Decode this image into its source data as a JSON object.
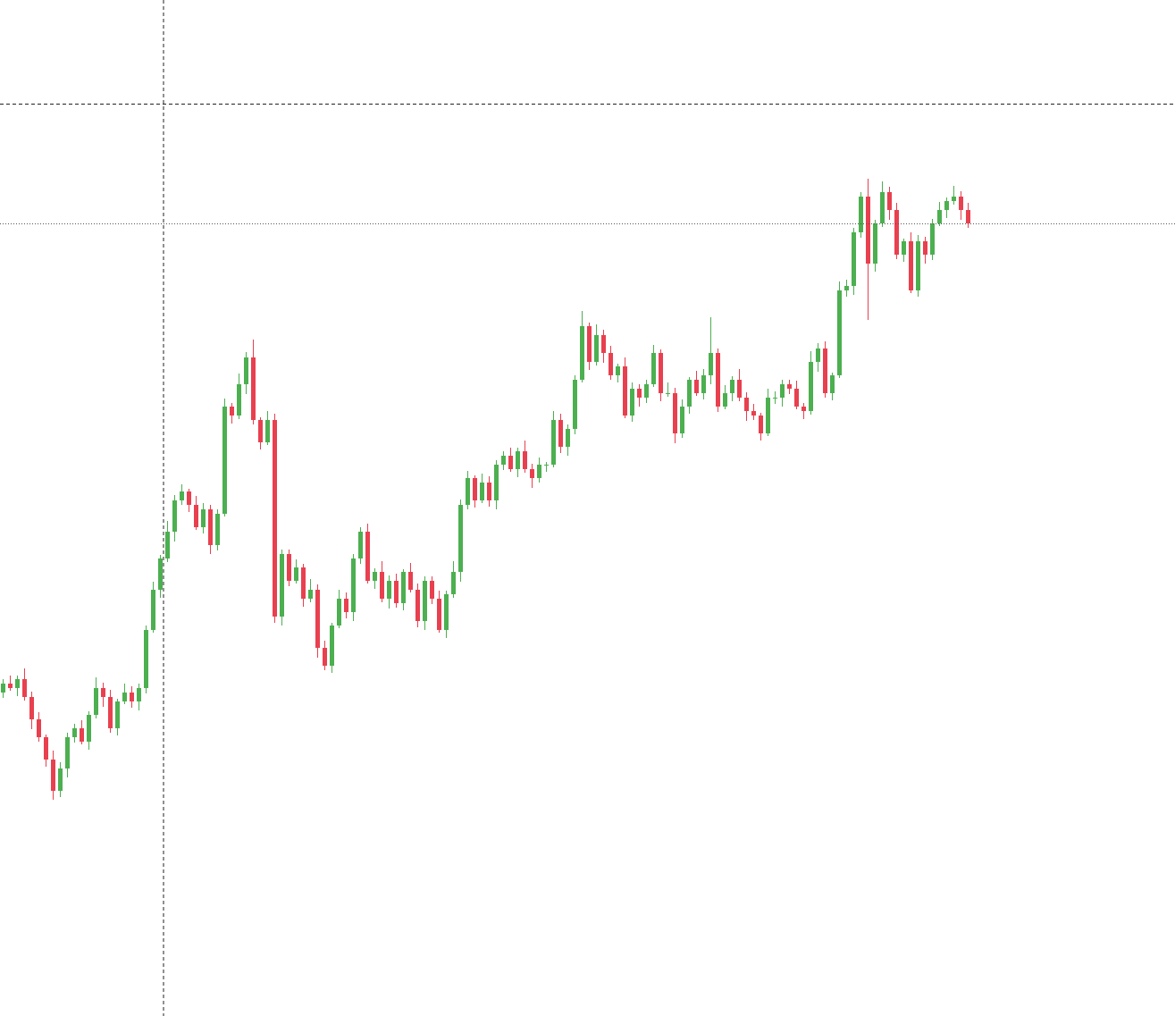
{
  "chart_data": {
    "type": "candlestick",
    "up_color": "#4caf50",
    "down_color": "#e8404f",
    "ylim": [
      0,
      1137
    ],
    "price_line": true,
    "open": [
      362,
      372,
      367,
      377,
      357,
      332,
      312,
      287,
      252,
      277,
      312,
      322,
      307,
      337,
      367,
      357,
      322,
      352,
      362,
      352,
      367,
      432,
      477,
      512,
      542,
      577,
      587,
      572,
      547,
      567,
      527,
      562,
      682,
      672,
      707,
      737,
      667,
      642,
      667,
      447,
      517,
      487,
      502,
      467,
      477,
      412,
      392,
      437,
      467,
      452,
      512,
      542,
      487,
      497,
      467,
      487,
      462,
      497,
      477,
      442,
      487,
      467,
      432,
      472,
      497,
      572,
      602,
      577,
      597,
      577,
      617,
      627,
      612,
      632,
      612,
      602,
      617,
      617,
      667,
      637,
      657,
      712,
      772,
      732,
      762,
      742,
      717,
      727,
      672,
      702,
      692,
      707,
      742,
      697,
      697,
      652,
      682,
      712,
      697,
      717,
      742,
      682,
      697,
      712,
      692,
      677,
      672,
      652,
      692,
      692,
      707,
      702,
      682,
      677,
      732,
      747,
      697,
      717,
      812,
      817,
      877,
      917,
      842,
      887,
      922,
      902,
      852,
      867,
      812,
      867,
      852,
      887,
      902,
      912,
      917,
      902
    ],
    "close": [
      372,
      367,
      377,
      357,
      332,
      312,
      287,
      252,
      277,
      312,
      322,
      307,
      337,
      367,
      357,
      322,
      352,
      362,
      352,
      367,
      432,
      477,
      512,
      542,
      577,
      587,
      572,
      547,
      567,
      527,
      562,
      682,
      672,
      707,
      737,
      667,
      642,
      667,
      447,
      517,
      487,
      502,
      467,
      477,
      412,
      392,
      437,
      467,
      452,
      512,
      542,
      487,
      497,
      467,
      487,
      462,
      497,
      477,
      442,
      487,
      467,
      432,
      472,
      497,
      572,
      602,
      577,
      597,
      577,
      617,
      627,
      612,
      632,
      612,
      602,
      617,
      617,
      667,
      637,
      657,
      712,
      772,
      732,
      762,
      742,
      717,
      727,
      672,
      702,
      692,
      707,
      742,
      697,
      697,
      652,
      682,
      712,
      697,
      717,
      742,
      682,
      697,
      712,
      692,
      677,
      672,
      652,
      692,
      692,
      707,
      702,
      682,
      677,
      732,
      747,
      697,
      717,
      812,
      817,
      877,
      917,
      842,
      887,
      922,
      902,
      852,
      867,
      812,
      867,
      852,
      887,
      902,
      912,
      917,
      902,
      887
    ],
    "high": [
      377,
      381,
      381,
      389,
      363,
      340,
      315,
      297,
      284,
      317,
      327,
      331,
      341,
      379,
      373,
      365,
      355,
      372,
      369,
      372,
      437,
      486,
      516,
      554,
      583,
      595,
      590,
      582,
      574,
      572,
      567,
      691,
      686,
      719,
      743,
      757,
      670,
      677,
      674,
      522,
      522,
      511,
      506,
      489,
      483,
      420,
      440,
      477,
      474,
      517,
      547,
      551,
      501,
      509,
      493,
      495,
      500,
      507,
      484,
      492,
      492,
      476,
      476,
      509,
      578,
      610,
      605,
      607,
      604,
      622,
      632,
      636,
      636,
      644,
      618,
      625,
      620,
      677,
      674,
      662,
      717,
      789,
      776,
      774,
      768,
      750,
      730,
      737,
      709,
      707,
      712,
      751,
      746,
      709,
      703,
      690,
      715,
      722,
      724,
      782,
      747,
      706,
      716,
      724,
      698,
      685,
      675,
      702,
      699,
      712,
      712,
      711,
      686,
      744,
      753,
      755,
      720,
      822,
      824,
      882,
      922,
      937,
      891,
      934,
      928,
      910,
      870,
      877,
      874,
      872,
      892,
      911,
      916,
      929,
      923,
      910
    ],
    "low": [
      356,
      364,
      358,
      353,
      321,
      307,
      279,
      242,
      245,
      267,
      306,
      304,
      298,
      333,
      346,
      317,
      314,
      349,
      345,
      342,
      361,
      429,
      468,
      508,
      531,
      572,
      564,
      544,
      540,
      517,
      521,
      559,
      663,
      668,
      696,
      662,
      634,
      639,
      440,
      437,
      481,
      484,
      458,
      463,
      401,
      387,
      384,
      434,
      445,
      442,
      506,
      484,
      478,
      463,
      456,
      457,
      454,
      474,
      435,
      432,
      461,
      429,
      423,
      468,
      486,
      567,
      569,
      574,
      570,
      567,
      611,
      609,
      603,
      608,
      591,
      597,
      609,
      614,
      630,
      627,
      651,
      709,
      723,
      728,
      731,
      712,
      709,
      669,
      665,
      682,
      686,
      704,
      688,
      693,
      641,
      647,
      674,
      694,
      690,
      707,
      676,
      679,
      688,
      688,
      666,
      667,
      644,
      649,
      685,
      682,
      696,
      679,
      668,
      673,
      721,
      692,
      689,
      714,
      805,
      807,
      871,
      779,
      833,
      883,
      891,
      847,
      844,
      809,
      805,
      842,
      846,
      884,
      893,
      908,
      891,
      882
    ]
  }
}
